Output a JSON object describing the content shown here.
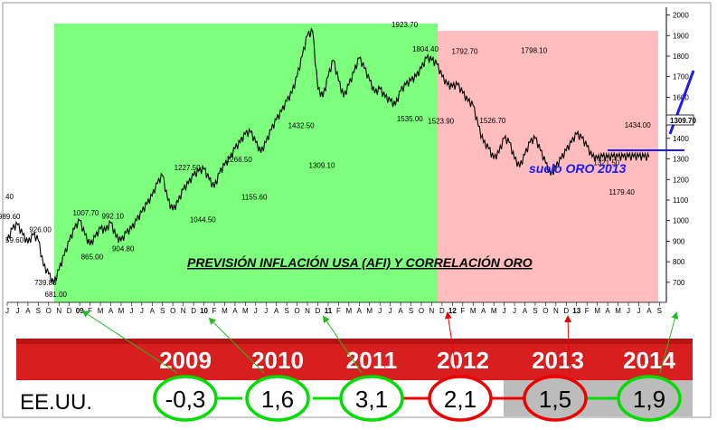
{
  "chart_data": {
    "type": "line",
    "title": "PREVISIÓN INFLACIÓN USA (AFI) Y CORRELACIÓN ORO",
    "annotation": "suelo ORO 2013",
    "current_price": "1309.70",
    "ylim": [
      620,
      2020
    ],
    "y_ticks": [
      "2000",
      "1900",
      "1800",
      "1700",
      "1600",
      "1500",
      "1400",
      "1300",
      "1200",
      "1100",
      "1000",
      "900",
      "800",
      "700"
    ],
    "left_cut_labels": [
      "40",
      "59.60"
    ],
    "month_labels": [
      "J",
      "J",
      "A",
      "S",
      "O",
      "N",
      "D",
      "09",
      "F",
      "M",
      "A",
      "M",
      "J",
      "J",
      "A",
      "S",
      "O",
      "N",
      "D",
      "10",
      "F",
      "M",
      "A",
      "M",
      "J",
      "J",
      "A",
      "S",
      "O",
      "N",
      "D",
      "11",
      "F",
      "M",
      "A",
      "M",
      "J",
      "J",
      "A",
      "S",
      "O",
      "N",
      "D",
      "12",
      "F",
      "M",
      "A",
      "M",
      "J",
      "J",
      "A",
      "S",
      "O",
      "N",
      "D",
      "13",
      "F",
      "M",
      "A",
      "M",
      "J",
      "J",
      "A",
      "S"
    ],
    "peak_labels": [
      {
        "label": "989.60",
        "month": 0.0,
        "value": 989.6
      },
      {
        "label": "926.00",
        "month": 3.0,
        "value": 926.0
      },
      {
        "label": "739.80",
        "month": 3.5,
        "value": 739.8
      },
      {
        "label": "681.00",
        "month": 4.5,
        "value": 681.0
      },
      {
        "label": "1007.70",
        "month": 7.2,
        "value": 1007.7
      },
      {
        "label": "865.00",
        "month": 8.0,
        "value": 865.0
      },
      {
        "label": "992.10",
        "month": 10.0,
        "value": 992.1
      },
      {
        "label": "904.80",
        "month": 11.0,
        "value": 904.8
      },
      {
        "label": "1227.50",
        "month": 17.0,
        "value": 1227.5
      },
      {
        "label": "1044.50",
        "month": 18.5,
        "value": 1044.5
      },
      {
        "label": "1266.50",
        "month": 22.0,
        "value": 1266.5
      },
      {
        "label": "1155.60",
        "month": 23.5,
        "value": 1155.6
      },
      {
        "label": "1432.50",
        "month": 28.0,
        "value": 1432.5
      },
      {
        "label": "1309.10",
        "month": 30.0,
        "value": 1309.1
      },
      {
        "label": "1923.70",
        "month": 38.0,
        "value": 1923.7
      },
      {
        "label": "1804.40",
        "month": 40.0,
        "value": 1804.4
      },
      {
        "label": "1535.00",
        "month": 38.5,
        "value": 1535.0
      },
      {
        "label": "1523.90",
        "month": 41.5,
        "value": 1523.9
      },
      {
        "label": "1792.70",
        "month": 43.8,
        "value": 1792.7
      },
      {
        "label": "1526.70",
        "month": 46.5,
        "value": 1526.7
      },
      {
        "label": "1798.10",
        "month": 50.5,
        "value": 1798.1
      },
      {
        "label": "1321.50",
        "month": 57.5,
        "value": 1321.5
      },
      {
        "label": "1434.00",
        "month": 60.5,
        "value": 1434.0
      },
      {
        "label": "1179.40",
        "month": 59.0,
        "value": 1179.4
      }
    ],
    "series": [
      {
        "x": [
          0,
          0.5,
          1,
          1.5,
          2,
          2.5,
          3,
          3.5,
          4,
          4.5,
          5,
          5.5,
          6,
          6.5,
          7,
          7.5,
          8,
          8.5,
          9,
          9.5,
          10,
          10.5,
          11,
          11.5,
          12,
          12.5,
          13,
          13.5,
          14,
          14.5,
          15,
          15.5,
          16,
          16.5,
          17,
          17.5,
          18,
          18.5,
          19,
          19.5,
          20,
          20.5,
          21,
          21.5,
          22,
          22.5,
          23,
          23.5,
          24,
          24.5,
          25,
          25.5,
          26,
          26.5,
          27,
          27.5,
          28,
          28.5,
          29,
          29.5,
          30,
          30.5,
          31,
          31.5,
          32,
          32.5,
          33,
          33.5,
          34,
          34.5,
          35,
          35.5,
          36,
          36.5,
          37,
          37.5,
          38,
          38.5,
          39,
          39.5,
          40,
          40.5,
          41,
          41.5,
          42,
          42.5,
          43,
          43.5,
          44,
          44.5,
          45,
          45.5,
          46,
          46.5,
          47,
          47.5,
          48,
          48.5,
          49,
          49.5,
          50,
          50.5,
          51,
          51.5,
          52,
          52.5,
          53,
          53.5,
          54,
          54.5,
          55,
          55.5,
          56,
          56.5,
          57,
          57.5,
          58,
          58.5,
          59,
          59.5,
          60,
          60.5,
          61,
          61.5,
          62
        ],
        "y": [
          900,
          960,
          980,
          930,
          890,
          930,
          905,
          780,
          740,
          690,
          760,
          830,
          900,
          960,
          1000,
          930,
          880,
          920,
          960,
          950,
          990,
          920,
          900,
          940,
          960,
          1000,
          1040,
          1080,
          1120,
          1180,
          1220,
          1100,
          1050,
          1090,
          1150,
          1180,
          1220,
          1240,
          1250,
          1200,
          1160,
          1230,
          1270,
          1300,
          1350,
          1380,
          1420,
          1430,
          1380,
          1330,
          1380,
          1440,
          1490,
          1530,
          1580,
          1620,
          1700,
          1800,
          1900,
          1920,
          1640,
          1600,
          1700,
          1780,
          1680,
          1600,
          1660,
          1720,
          1790,
          1740,
          1680,
          1620,
          1640,
          1600,
          1580,
          1560,
          1630,
          1660,
          1680,
          1700,
          1740,
          1790,
          1780,
          1760,
          1700,
          1660,
          1650,
          1660,
          1620,
          1580,
          1560,
          1460,
          1380,
          1350,
          1300,
          1330,
          1400,
          1380,
          1300,
          1260,
          1320,
          1380,
          1400,
          1340,
          1280,
          1220,
          1260,
          1300,
          1340,
          1380,
          1420,
          1400,
          1360,
          1310,
          1300,
          1310,
          1305,
          1310,
          1309,
          1309,
          1310,
          1310,
          1310,
          1309,
          1309
        ]
      }
    ],
    "inflation_table": {
      "country": "EE.UU.",
      "years": [
        "2009",
        "2010",
        "2011",
        "2012",
        "2013",
        "2014"
      ],
      "values": [
        "-0,3",
        "1,6",
        "3,1",
        "2,1",
        "1,5",
        "1,9"
      ]
    },
    "colors": {
      "green_zone": "#7dff7d",
      "red_zone": "#ffbdbd",
      "banner_red": "#d81e1e",
      "circle_green": "#00dd00",
      "circle_red": "#ee0000",
      "grey_cell": "#bcbcbc",
      "blue_annotation": "#1a1aff"
    }
  }
}
